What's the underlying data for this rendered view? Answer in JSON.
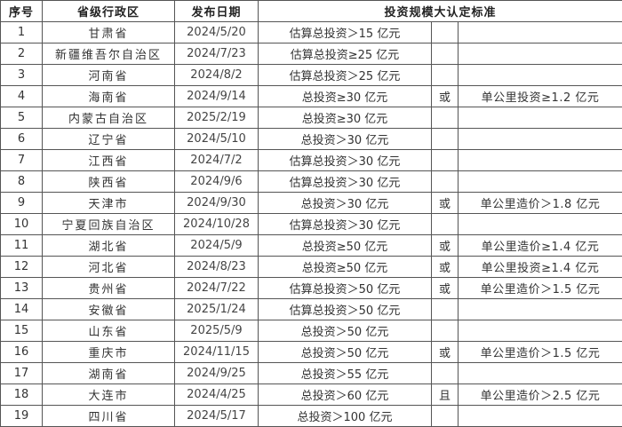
{
  "headers": {
    "index": "序号",
    "region": "省级行政区",
    "date": "发布日期",
    "standard": "投资规模大认定标准"
  },
  "rows": [
    {
      "no": "1",
      "region": "甘肃省",
      "date": "2024/5/20",
      "rule1": "估算总投资＞15 亿元",
      "conj": "",
      "rule2": ""
    },
    {
      "no": "2",
      "region": "新疆维吾尔自治区",
      "date": "2024/7/23",
      "rule1": "估算总投资≥25 亿元",
      "conj": "",
      "rule2": ""
    },
    {
      "no": "3",
      "region": "河南省",
      "date": "2024/8/2",
      "rule1": "估算总投资＞25 亿元",
      "conj": "",
      "rule2": ""
    },
    {
      "no": "4",
      "region": "海南省",
      "date": "2024/9/14",
      "rule1": "总投资≥30 亿元",
      "conj": "或",
      "rule2": "单公里投资≥1.2 亿元"
    },
    {
      "no": "5",
      "region": "内蒙古自治区",
      "date": "2025/2/19",
      "rule1": "总投资≥30 亿元",
      "conj": "",
      "rule2": ""
    },
    {
      "no": "6",
      "region": "辽宁省",
      "date": "2024/5/10",
      "rule1": "总投资＞30 亿元",
      "conj": "",
      "rule2": ""
    },
    {
      "no": "7",
      "region": "江西省",
      "date": "2024/7/2",
      "rule1": "估算总投资＞30 亿元",
      "conj": "",
      "rule2": ""
    },
    {
      "no": "8",
      "region": "陕西省",
      "date": "2024/9/6",
      "rule1": "估算总投资＞30 亿元",
      "conj": "",
      "rule2": ""
    },
    {
      "no": "9",
      "region": "天津市",
      "date": "2024/9/30",
      "rule1": "总投资＞30 亿元",
      "conj": "或",
      "rule2": "单公里造价＞1.8 亿元"
    },
    {
      "no": "10",
      "region": "宁夏回族自治区",
      "date": "2024/10/28",
      "rule1": "估算总投资＞30 亿元",
      "conj": "",
      "rule2": ""
    },
    {
      "no": "11",
      "region": "湖北省",
      "date": "2024/5/9",
      "rule1": "总投资≥50 亿元",
      "conj": "或",
      "rule2": "单公里造价≥1.4 亿元"
    },
    {
      "no": "12",
      "region": "河北省",
      "date": "2024/8/23",
      "rule1": "总投资≥50 亿元",
      "conj": "或",
      "rule2": "单公里投资≥1.4 亿元"
    },
    {
      "no": "13",
      "region": "贵州省",
      "date": "2024/7/22",
      "rule1": "估算总投资＞50 亿元",
      "conj": "或",
      "rule2": "单公里造价＞1.5 亿元"
    },
    {
      "no": "14",
      "region": "安徽省",
      "date": "2025/1/24",
      "rule1": "估算总投资＞50 亿元",
      "conj": "",
      "rule2": ""
    },
    {
      "no": "15",
      "region": "山东省",
      "date": "2025/5/9",
      "rule1": "总投资＞50 亿元",
      "conj": "",
      "rule2": ""
    },
    {
      "no": "16",
      "region": "重庆市",
      "date": "2024/11/15",
      "rule1": "总投资＞50 亿元",
      "conj": "或",
      "rule2": "单公里造价＞1.5 亿元"
    },
    {
      "no": "17",
      "region": "湖南省",
      "date": "2024/9/25",
      "rule1": "总投资＞55 亿元",
      "conj": "",
      "rule2": ""
    },
    {
      "no": "18",
      "region": "大连市",
      "date": "2024/4/25",
      "rule1": "总投资＞60 亿元",
      "conj": "且",
      "rule2": "单公里造价＞2.5 亿元"
    },
    {
      "no": "19",
      "region": "四川省",
      "date": "2024/5/17",
      "rule1": "总投资＞100 亿元",
      "conj": "",
      "rule2": ""
    }
  ]
}
